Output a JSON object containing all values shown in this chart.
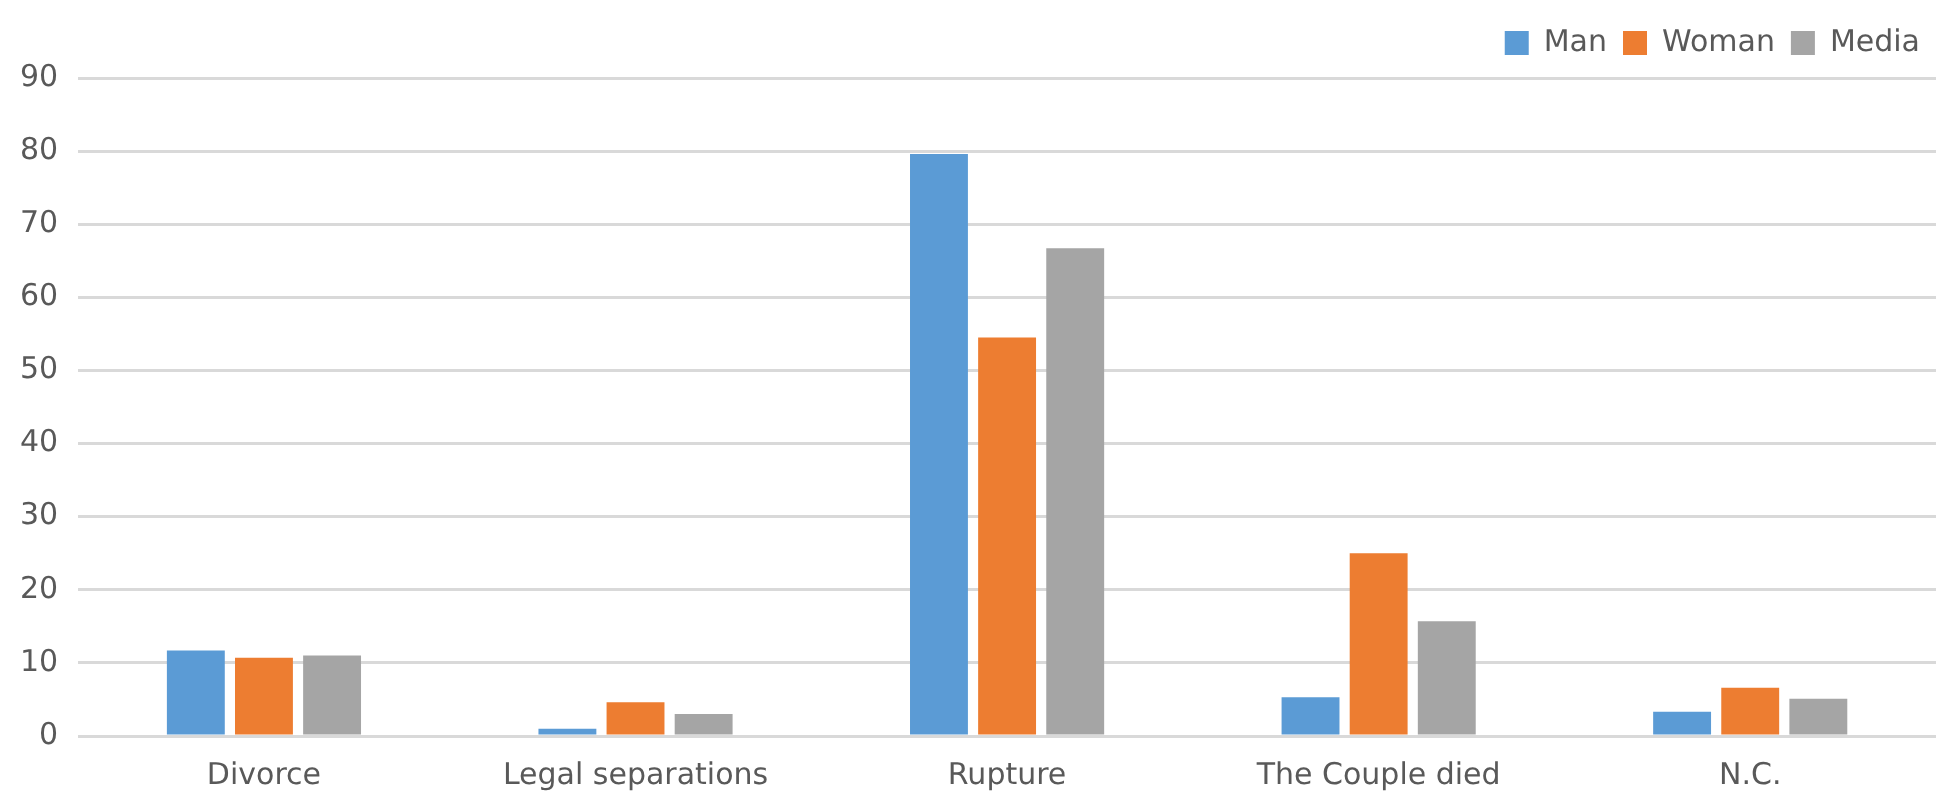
{
  "chart_data": {
    "type": "bar",
    "categories": [
      "Divorce",
      "Legal separations",
      "Rupture",
      "The Couple died",
      "N.C."
    ],
    "series": [
      {
        "name": "Man",
        "color": "#5b9bd5",
        "values": [
          11.7,
          1,
          79.6,
          5.3,
          3.3
        ]
      },
      {
        "name": "Woman",
        "color": "#ed7d31",
        "values": [
          10.7,
          4.6,
          54.5,
          25,
          6.6
        ]
      },
      {
        "name": "Media",
        "color": "#a5a5a5",
        "values": [
          11,
          3,
          66.7,
          15.7,
          5.1
        ]
      }
    ],
    "ylim": [
      0,
      90
    ],
    "yticks": [
      0,
      10,
      20,
      30,
      40,
      50,
      60,
      70,
      80,
      90
    ],
    "grid": "y",
    "legend": "top right"
  }
}
